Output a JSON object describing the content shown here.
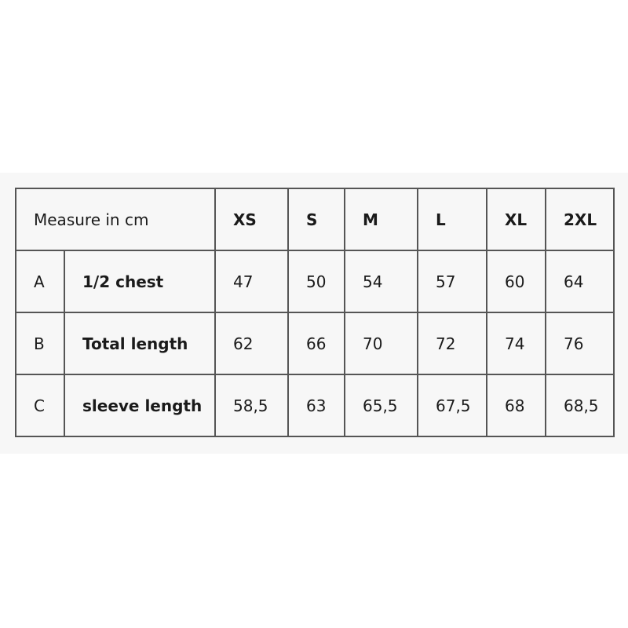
{
  "header": {
    "label": "Measure in cm",
    "sizes": [
      "XS",
      "S",
      "M",
      "L",
      "XL",
      "2XL"
    ]
  },
  "rows": [
    {
      "code": "A",
      "name": "1/2 chest",
      "values": [
        "47",
        "50",
        "54",
        "57",
        "60",
        "64"
      ]
    },
    {
      "code": "B",
      "name": "Total length",
      "values": [
        "62",
        "66",
        "70",
        "72",
        "74",
        "76"
      ]
    },
    {
      "code": "C",
      "name": "sleeve length",
      "values": [
        "58,5",
        "63",
        "65,5",
        "67,5",
        "68",
        "68,5"
      ]
    }
  ]
}
